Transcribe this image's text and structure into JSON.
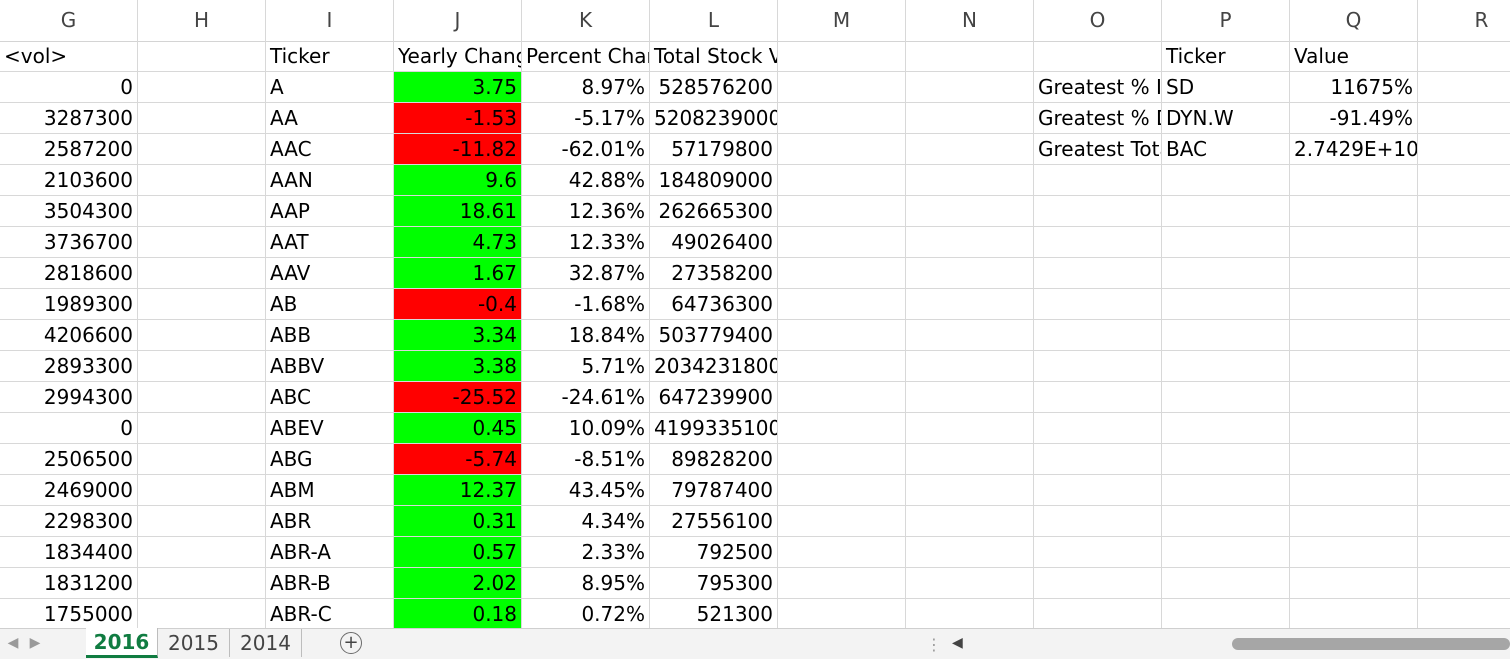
{
  "columns": [
    "G",
    "H",
    "I",
    "J",
    "K",
    "L",
    "M",
    "N",
    "O",
    "P",
    "Q",
    "R"
  ],
  "header_row": {
    "G": "<vol>",
    "I": "Ticker",
    "J": "Yearly Change",
    "K": "Percent Change",
    "L": "Total Stock Volume",
    "P": "Ticker",
    "Q": "Value"
  },
  "rows": [
    {
      "vol": "0",
      "ticker": "A",
      "yearly": "3.75",
      "pct": "8.97%",
      "total": "528576200",
      "positive": true
    },
    {
      "vol": "3287300",
      "ticker": "AA",
      "yearly": "-1.53",
      "pct": "-5.17%",
      "total": "5208239000",
      "positive": false
    },
    {
      "vol": "2587200",
      "ticker": "AAC",
      "yearly": "-11.82",
      "pct": "-62.01%",
      "total": "57179800",
      "positive": false
    },
    {
      "vol": "2103600",
      "ticker": "AAN",
      "yearly": "9.6",
      "pct": "42.88%",
      "total": "184809000",
      "positive": true
    },
    {
      "vol": "3504300",
      "ticker": "AAP",
      "yearly": "18.61",
      "pct": "12.36%",
      "total": "262665300",
      "positive": true
    },
    {
      "vol": "3736700",
      "ticker": "AAT",
      "yearly": "4.73",
      "pct": "12.33%",
      "total": "49026400",
      "positive": true
    },
    {
      "vol": "2818600",
      "ticker": "AAV",
      "yearly": "1.67",
      "pct": "32.87%",
      "total": "27358200",
      "positive": true
    },
    {
      "vol": "1989300",
      "ticker": "AB",
      "yearly": "-0.4",
      "pct": "-1.68%",
      "total": "64736300",
      "positive": false
    },
    {
      "vol": "4206600",
      "ticker": "ABB",
      "yearly": "3.34",
      "pct": "18.84%",
      "total": "503779400",
      "positive": true
    },
    {
      "vol": "2893300",
      "ticker": "ABBV",
      "yearly": "3.38",
      "pct": "5.71%",
      "total": "2034231800",
      "positive": true
    },
    {
      "vol": "2994300",
      "ticker": "ABC",
      "yearly": "-25.52",
      "pct": "-24.61%",
      "total": "647239900",
      "positive": false
    },
    {
      "vol": "0",
      "ticker": "ABEV",
      "yearly": "0.45",
      "pct": "10.09%",
      "total": "4199335100",
      "positive": true
    },
    {
      "vol": "2506500",
      "ticker": "ABG",
      "yearly": "-5.74",
      "pct": "-8.51%",
      "total": "89828200",
      "positive": false
    },
    {
      "vol": "2469000",
      "ticker": "ABM",
      "yearly": "12.37",
      "pct": "43.45%",
      "total": "79787400",
      "positive": true
    },
    {
      "vol": "2298300",
      "ticker": "ABR",
      "yearly": "0.31",
      "pct": "4.34%",
      "total": "27556100",
      "positive": true
    },
    {
      "vol": "1834400",
      "ticker": "ABR-A",
      "yearly": "0.57",
      "pct": "2.33%",
      "total": "792500",
      "positive": true
    },
    {
      "vol": "1831200",
      "ticker": "ABR-B",
      "yearly": "2.02",
      "pct": "8.95%",
      "total": "795300",
      "positive": true
    },
    {
      "vol": "1755000",
      "ticker": "ABR-C",
      "yearly": "0.18",
      "pct": "0.72%",
      "total": "521300",
      "positive": true
    }
  ],
  "summary": [
    {
      "label": "Greatest % Increase",
      "ticker": "SD",
      "value": "11675%"
    },
    {
      "label": "Greatest % Decrease",
      "ticker": "DYN.W",
      "value": "-91.49%"
    },
    {
      "label": "Greatest Total Volume",
      "ticker": "BAC",
      "value": "2.7429E+10"
    }
  ],
  "sheet_tabs": [
    "2016",
    "2015",
    "2014"
  ],
  "active_tab": "2016",
  "icons": {
    "add_sheet": "plus-circle-icon",
    "nav_prev": "triangle-left-icon",
    "nav_next": "triangle-right-icon",
    "splitter": "vertical-dots-icon",
    "scroll_left": "triangle-left-icon"
  },
  "colors": {
    "positive_fill": "#00ff00",
    "negative_fill": "#ff0000",
    "active_tab": "#107c41"
  }
}
